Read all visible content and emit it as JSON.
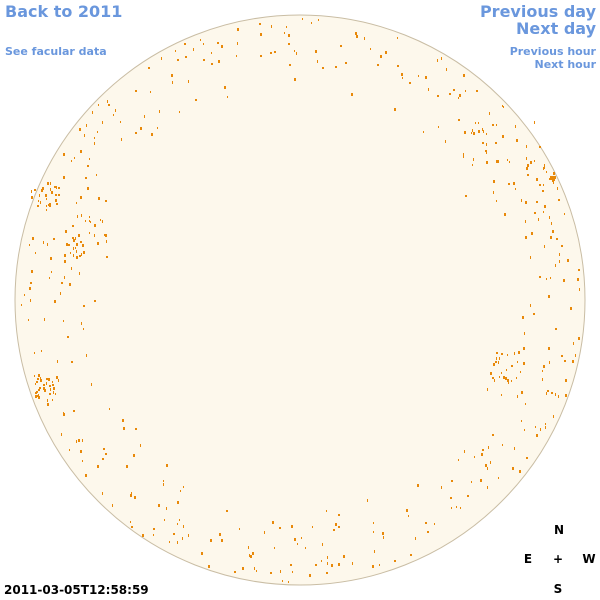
{
  "nav": {
    "back": "Back to 2011",
    "facular": "See facular data",
    "previous_day": "Previous day",
    "next_day": "Next day",
    "previous_hour": "Previous hour",
    "next_hour": "Next hour"
  },
  "timestamp": "2011-03-05T12:58:59",
  "compass": {
    "north": "N",
    "east": "E",
    "center": "+",
    "west": "W",
    "south": "S"
  }
}
